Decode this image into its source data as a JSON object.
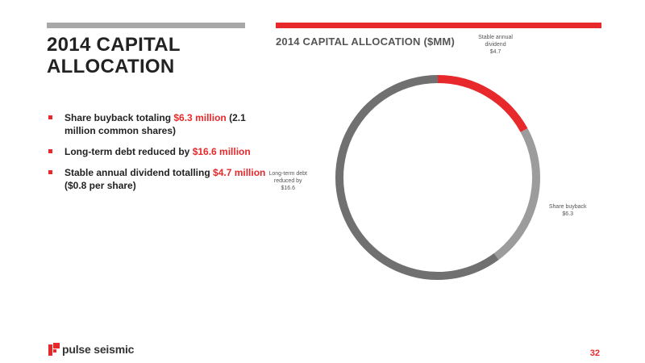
{
  "slide": {
    "title": "2014 CAPITAL ALLOCATION",
    "page_number": "32",
    "logo_text": "pulse seismic"
  },
  "colors": {
    "accent": "#e8292b",
    "gray_light": "#a8a8a8",
    "gray_mid": "#9c9c9c",
    "gray_dark": "#707070"
  },
  "bullets": [
    {
      "pre": "Share buyback totaling ",
      "highlight": "$6.3 million",
      "post": " (2.1 million common shares)"
    },
    {
      "pre": "Long-term debt reduced by ",
      "highlight": "$16.6 million",
      "post": ""
    },
    {
      "pre": "Stable annual dividend totalling ",
      "highlight": "$4.7 million",
      "post": " ($0.8 per share)"
    }
  ],
  "chart_data": {
    "type": "pie",
    "variant": "donut",
    "title": "2014 CAPITAL ALLOCATION ($MM)",
    "start_angle_deg": 0,
    "direction": "clockwise",
    "slices": [
      {
        "label": "Stable annual dividend",
        "value_label": "$4.7",
        "value": 4.7,
        "color": "#e8292b"
      },
      {
        "label": "Share buyback",
        "value_label": "$6.3",
        "value": 6.3,
        "color": "#9c9c9c"
      },
      {
        "label": "Long-term debt reduced by",
        "value_label": "$16.6",
        "value": 16.6,
        "color": "#707070"
      }
    ]
  }
}
